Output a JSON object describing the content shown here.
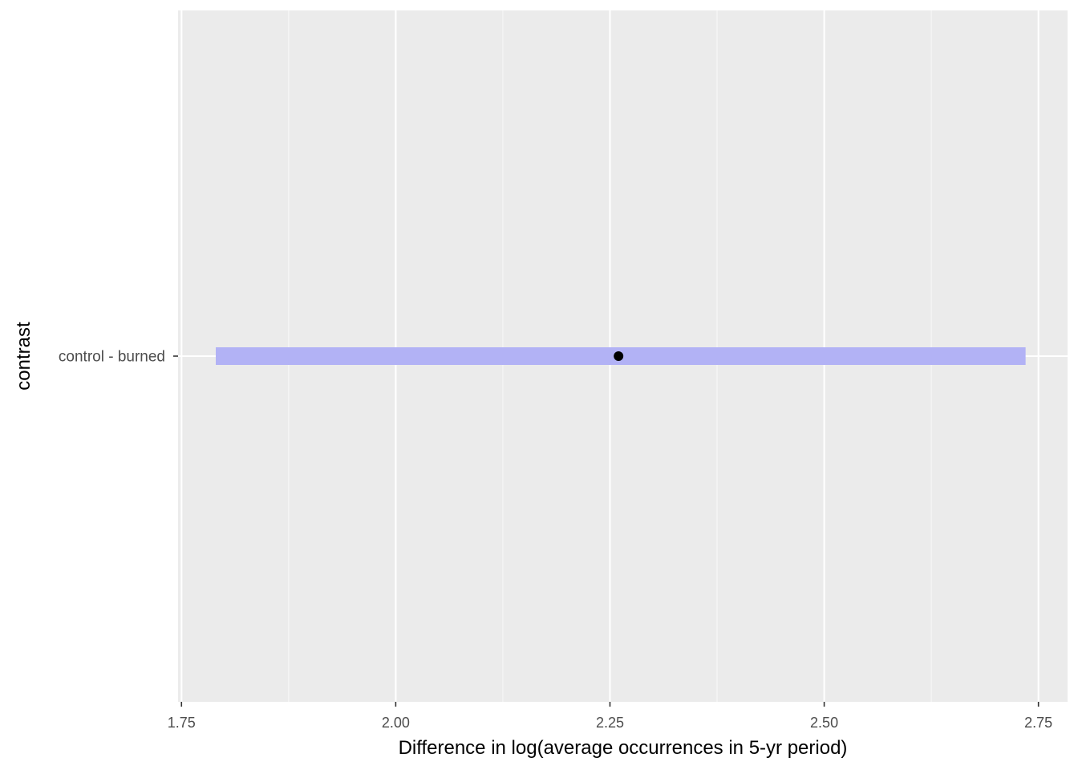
{
  "chart_data": {
    "type": "pointrange",
    "orientation": "horizontal",
    "xlabel": "Difference in log(average occurrences in 5-yr period)",
    "ylabel": "contrast",
    "xlim": [
      1.746,
      2.784
    ],
    "x_ticks": [
      {
        "value": 1.75,
        "label": "1.75"
      },
      {
        "value": 2.0,
        "label": "2.00"
      },
      {
        "value": 2.25,
        "label": "2.25"
      },
      {
        "value": 2.5,
        "label": "2.50"
      },
      {
        "value": 2.75,
        "label": "2.75"
      }
    ],
    "x_minor_ticks": [
      1.875,
      2.125,
      2.375,
      2.625
    ],
    "categories": [
      "control - burned"
    ],
    "estimates": [
      {
        "category": "control - burned",
        "estimate": 2.26,
        "lower": 1.79,
        "upper": 2.735
      }
    ],
    "grid": true,
    "legend": "none",
    "colors": {
      "panel_background": "#EBEBEB",
      "grid_major": "#FFFFFF",
      "grid_minor": "#F7F7F7",
      "interval_band": "#B2B2F5",
      "point": "#000000",
      "tick_label": "#4D4D4D",
      "axis_title": "#000000",
      "axis_tick": "#333333"
    }
  }
}
